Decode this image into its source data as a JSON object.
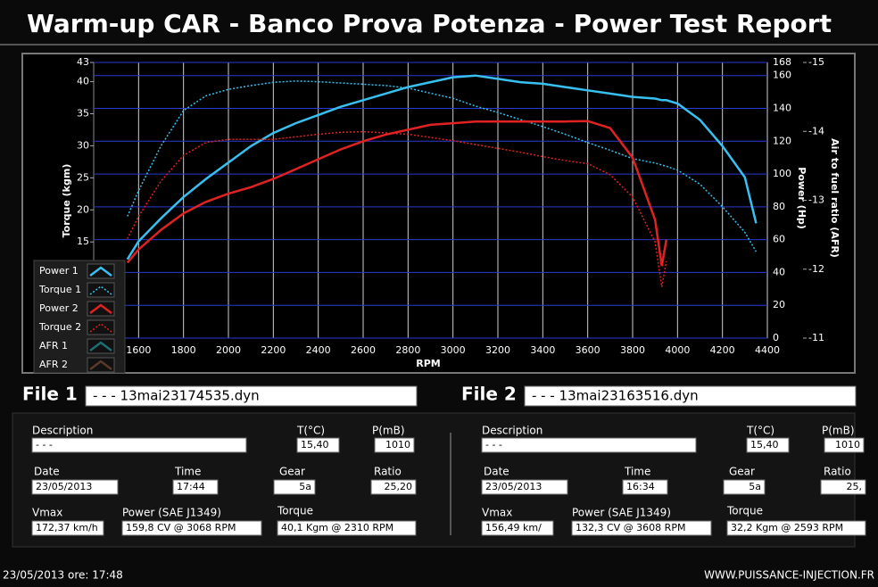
{
  "header": {
    "title": "Warm-up CAR  - Banco Prova Potenza -  Power Test Report"
  },
  "chart_data": {
    "type": "line",
    "xlabel": "RPM",
    "ylabel": "Torque (kgm)",
    "y2label": "Power (Hp)",
    "y3label": "Air to fuel ratio (AFR)",
    "x": [
      1550,
      1600,
      1700,
      1800,
      1900,
      2000,
      2100,
      2200,
      2300,
      2400,
      2500,
      2600,
      2700,
      2800,
      2900,
      3000,
      3100,
      3200,
      3300,
      3400,
      3500,
      3600,
      3700,
      3800,
      3900,
      3930,
      3950,
      4000,
      4100,
      4200,
      4300,
      4350
    ],
    "xlim": [
      1400,
      4400
    ],
    "xticks": [
      1600,
      1800,
      2000,
      2200,
      2400,
      2600,
      2800,
      3000,
      3200,
      3400,
      3600,
      3800,
      4000,
      4200,
      4400
    ],
    "ylim": [
      0,
      43
    ],
    "yticks": [
      15,
      20,
      25,
      30,
      35,
      40,
      43
    ],
    "y2lim": [
      0,
      168
    ],
    "y2ticks": [
      0,
      20,
      40,
      60,
      80,
      100,
      120,
      140,
      160,
      168
    ],
    "y3lim": [
      -11,
      -15
    ],
    "y3ticks": [
      -11,
      -12,
      -13,
      -14,
      -15
    ],
    "grid": true,
    "grid_color": "#2a3ad0",
    "series": [
      {
        "name": "Power 1",
        "color": "#38c0f0",
        "axis": "y2",
        "line_style": "solid",
        "values": [
          48,
          59,
          73,
          86,
          97,
          107,
          117,
          125,
          131,
          136,
          141,
          145,
          149,
          153,
          156,
          159,
          160,
          158,
          156,
          155,
          153,
          151,
          149,
          147,
          146,
          145,
          145,
          143,
          133,
          117,
          98,
          70
        ]
      },
      {
        "name": "Torque 1",
        "color": "#38c0f0",
        "axis": "y",
        "line_style": "dotted",
        "values": [
          19,
          23,
          30,
          35.5,
          37.8,
          38.8,
          39.4,
          39.9,
          40.1,
          40,
          39.8,
          39.6,
          39.4,
          39,
          38.2,
          37.4,
          36.2,
          35.2,
          34.1,
          33,
          31.8,
          30.5,
          29.3,
          28,
          27.3,
          27,
          26.8,
          26.2,
          24,
          20.5,
          16.5,
          13.5
        ]
      },
      {
        "name": "Power 2",
        "color": "#e02222",
        "axis": "y2",
        "line_style": "solid",
        "values": [
          46,
          54,
          66,
          76,
          83,
          88,
          92,
          97,
          103,
          109,
          115,
          120,
          124,
          127,
          130,
          131,
          132,
          132,
          132,
          132,
          132,
          132.3,
          128,
          110,
          72,
          44,
          60,
          null,
          null,
          null,
          null,
          null
        ]
      },
      {
        "name": "Torque 2",
        "color": "#e02222",
        "axis": "y",
        "line_style": "dotted",
        "values": [
          15.5,
          19,
          24.5,
          28.5,
          30.5,
          31,
          31,
          31,
          31.4,
          31.8,
          32.1,
          32.2,
          32,
          31.8,
          31.3,
          30.8,
          30.2,
          29.6,
          29,
          28.3,
          27.7,
          27.2,
          25.5,
          22,
          15,
          8,
          12,
          null,
          null,
          null,
          null,
          null
        ]
      },
      {
        "name": "AFR 1",
        "color": "#1d6f74",
        "axis": "y3",
        "line_style": "solid",
        "values": [
          null,
          null,
          null,
          null,
          null,
          null,
          null,
          null,
          null,
          null,
          null,
          null,
          null,
          null,
          null,
          null,
          null,
          null,
          null,
          null,
          null,
          null,
          null,
          null,
          null,
          null,
          null,
          null,
          null,
          null,
          null,
          null
        ]
      },
      {
        "name": "AFR 2",
        "color": "#5a3a2a",
        "axis": "y3",
        "line_style": "solid",
        "values": [
          null,
          null,
          null,
          null,
          null,
          null,
          null,
          null,
          null,
          null,
          null,
          null,
          null,
          null,
          null,
          null,
          null,
          null,
          null,
          null,
          null,
          null,
          null,
          null,
          null,
          null,
          null,
          null,
          null,
          null,
          null,
          null
        ]
      }
    ]
  },
  "files": [
    {
      "label": "File 1",
      "name": "- - - 13mai23174535.dyn",
      "fields": [
        {
          "label": "Description",
          "value": "- - -"
        },
        {
          "label": "T(°C)",
          "value": "15,40"
        },
        {
          "label": "P(mB)",
          "value": "1010"
        },
        {
          "label": "Date",
          "value": "23/05/2013"
        },
        {
          "label": "Time",
          "value": "17:44"
        },
        {
          "label": "Gear",
          "value": "5a"
        },
        {
          "label": "Ratio",
          "value": "25,20"
        },
        {
          "label": "Vmax",
          "value": "172,37 km/h"
        },
        {
          "label": "Power (SAE J1349)",
          "value": "159,8 CV  @ 3068  RPM"
        },
        {
          "label": "Torque",
          "value": "40,1 Kgm  @ 2310  RPM"
        }
      ]
    },
    {
      "label": "File 2",
      "name": "- - - 13mai23163516.dyn",
      "fields": [
        {
          "label": "Description",
          "value": "- - -"
        },
        {
          "label": "T(°C)",
          "value": "15,40"
        },
        {
          "label": "P(mB)",
          "value": "1010"
        },
        {
          "label": "Date",
          "value": "23/05/2013"
        },
        {
          "label": "Time",
          "value": "16:34"
        },
        {
          "label": "Gear",
          "value": "5a"
        },
        {
          "label": "Ratio",
          "value": "25,"
        },
        {
          "label": "Vmax",
          "value": "156,49 km/"
        },
        {
          "label": "Power (SAE J1349)",
          "value": "132,3 CV  @ 3608  RPM"
        },
        {
          "label": "Torque",
          "value": "32,2 Kgm  @ 2593  RPM"
        }
      ]
    }
  ],
  "footer": {
    "datetime": "23/05/2013  ore: 17:48",
    "website": "WWW.PUISSANCE-INJECTION.FR"
  }
}
